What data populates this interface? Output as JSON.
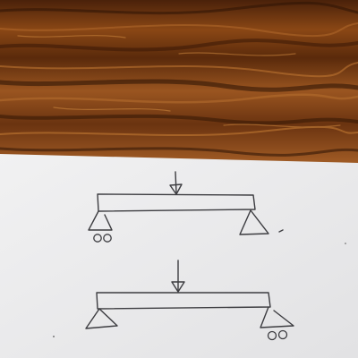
{
  "scene": {
    "description_tag": "photo",
    "colors": {
      "wood_dark": "#3a1a06",
      "wood_mid": "#7a3d12",
      "wood_light": "#b0692a",
      "paper": "#ebebec",
      "ink": "#3c3c40"
    }
  },
  "diagrams": [
    {
      "id": "top",
      "elements": [
        "beam",
        "point-load-arrow",
        "roller-support-left",
        "pin-support-right"
      ]
    },
    {
      "id": "bottom",
      "elements": [
        "beam",
        "point-load-arrow",
        "pin-support-left",
        "roller-support-right"
      ]
    }
  ]
}
